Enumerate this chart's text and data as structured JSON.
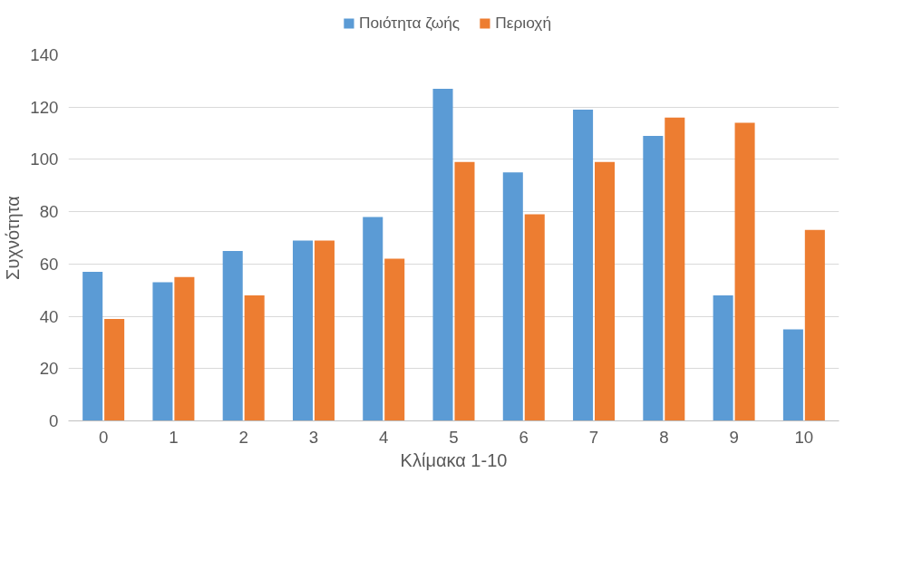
{
  "chart_data": {
    "type": "bar",
    "xlabel": "Κλίμακα 1-10",
    "ylabel": "Συχνότητα",
    "categories": [
      "0",
      "1",
      "2",
      "3",
      "4",
      "5",
      "6",
      "7",
      "8",
      "9",
      "10"
    ],
    "series": [
      {
        "name": "Ποιότητα ζωής",
        "color": "#5b9bd5",
        "values": [
          57,
          53,
          65,
          69,
          78,
          127,
          95,
          119,
          109,
          48,
          35
        ]
      },
      {
        "name": "Περιοχή",
        "color": "#ed7d31",
        "values": [
          39,
          55,
          48,
          69,
          62,
          99,
          79,
          99,
          116,
          114,
          73
        ]
      }
    ],
    "ylim": [
      0,
      140
    ],
    "yticks": [
      0,
      20,
      40,
      60,
      80,
      100,
      120,
      140
    ],
    "grid": "y",
    "legend": "top"
  }
}
